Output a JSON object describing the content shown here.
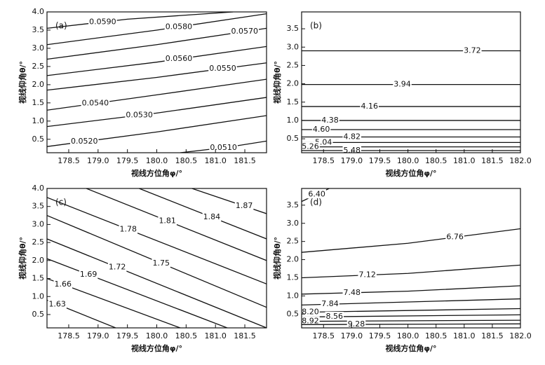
{
  "chart_data": [
    {
      "type": "contour",
      "panel_label": "(a)",
      "xlabel": "视线方位角φ/°",
      "ylabel": "视线仰角θ/°",
      "xlim": [
        178.13,
        181.87
      ],
      "ylim": [
        0.13,
        4.0
      ],
      "xticks": [
        178.5,
        {
          "value": 179,
          "label": "179.0"
        },
        179.5,
        {
          "value": 180,
          "label": "180.0"
        },
        180.5,
        {
          "value": 181,
          "label": "181.0"
        },
        181.5
      ],
      "yticks": [
        0.5,
        {
          "value": 1,
          "label": "1.0"
        },
        1.5,
        {
          "value": 2,
          "label": "2.0"
        },
        2.5,
        {
          "value": 3,
          "label": "3.0"
        },
        3.5,
        {
          "value": 4,
          "label": "4.0"
        }
      ],
      "contours": [
        {
          "level": 0.059,
          "label": "0.0590",
          "x": [
            178.13,
            179.5,
            181.3
          ],
          "y": [
            3.55,
            3.8,
            4.0
          ]
        },
        {
          "level": 0.058,
          "label": "0.0580",
          "x": [
            178.13,
            180.0,
            181.87
          ],
          "y": [
            3.1,
            3.5,
            3.95
          ]
        },
        {
          "level": 0.057,
          "label": "0.0570",
          "x": [
            178.13,
            180.0,
            181.87
          ],
          "y": [
            2.7,
            3.1,
            3.55
          ]
        },
        {
          "level": 0.056,
          "label": "0.0560",
          "x": [
            178.13,
            180.0,
            181.87
          ],
          "y": [
            2.25,
            2.62,
            3.05
          ]
        },
        {
          "level": 0.055,
          "label": "0.0550",
          "x": [
            178.13,
            180.0,
            181.87
          ],
          "y": [
            1.85,
            2.2,
            2.6
          ]
        },
        {
          "level": 0.054,
          "label": "0.0540",
          "x": [
            178.13,
            180.0,
            181.87
          ],
          "y": [
            1.3,
            1.72,
            2.15
          ]
        },
        {
          "level": 0.053,
          "label": "0.0530",
          "x": [
            178.13,
            180.0,
            181.87
          ],
          "y": [
            0.85,
            1.22,
            1.65
          ]
        },
        {
          "level": 0.052,
          "label": "0.0520",
          "x": [
            178.13,
            180.0,
            181.87
          ],
          "y": [
            0.3,
            0.7,
            1.15
          ]
        },
        {
          "level": 0.051,
          "label": "0.0510",
          "x": [
            180.4,
            181.2,
            181.87
          ],
          "y": [
            0.13,
            0.28,
            0.45
          ]
        }
      ]
    },
    {
      "type": "contour",
      "panel_label": "(b)",
      "xlabel": "视线方位角φ/°",
      "ylabel": "视线仰角θ/°",
      "xlim": [
        178.11,
        182.0
      ],
      "ylim": [
        0.12,
        3.96
      ],
      "xticks": [
        178.5,
        {
          "value": 179,
          "label": "179.0"
        },
        179.5,
        {
          "value": 180,
          "label": "180.0"
        },
        180.5,
        {
          "value": 181,
          "label": "181.0"
        },
        181.5,
        {
          "value": 182,
          "label": "182.0"
        }
      ],
      "yticks": [
        0.5,
        {
          "value": 1,
          "label": "1.0"
        },
        1.5,
        {
          "value": 2,
          "label": "2.0"
        },
        2.5,
        {
          "value": 3,
          "label": "3.0"
        },
        3.5
      ],
      "contours": [
        {
          "level": 3.72,
          "x": [
            178.11,
            182.0
          ],
          "y": [
            2.9,
            2.9
          ]
        },
        {
          "level": 3.94,
          "x": [
            178.11,
            182.0
          ],
          "y": [
            1.98,
            1.98
          ]
        },
        {
          "level": 4.16,
          "x": [
            178.11,
            182.0
          ],
          "y": [
            1.38,
            1.38
          ]
        },
        {
          "level": 4.38,
          "x": [
            178.11,
            182.0
          ],
          "y": [
            1.0,
            1.0
          ]
        },
        {
          "level": 4.6,
          "label": "4.60",
          "x": [
            178.11,
            182.0
          ],
          "y": [
            0.75,
            0.75
          ]
        },
        {
          "level": 4.82,
          "x": [
            178.11,
            182.0
          ],
          "y": [
            0.55,
            0.55
          ]
        },
        {
          "level": 5.04,
          "x": [
            178.11,
            182.0
          ],
          "y": [
            0.4,
            0.4
          ]
        },
        {
          "level": 5.26,
          "x": [
            178.11,
            182.0
          ],
          "y": [
            0.28,
            0.28
          ]
        },
        {
          "level": 5.48,
          "x": [
            178.11,
            182.0
          ],
          "y": [
            0.18,
            0.18
          ]
        }
      ]
    },
    {
      "type": "contour",
      "panel_label": "(c)",
      "xlabel": "视线方位角φ/°",
      "ylabel": "视线仰角θ/°",
      "xlim": [
        178.13,
        181.87
      ],
      "ylim": [
        0.13,
        4.0
      ],
      "xticks": [
        178.5,
        {
          "value": 179,
          "label": "179.0"
        },
        179.5,
        {
          "value": 180,
          "label": "180.0"
        },
        180.5,
        {
          "value": 181,
          "label": "181.0"
        },
        181.5
      ],
      "yticks": [
        0.5,
        {
          "value": 1,
          "label": "1.0"
        },
        1.5,
        {
          "value": 2,
          "label": "2.0"
        },
        2.5,
        {
          "value": 3,
          "label": "3.0"
        },
        3.5,
        {
          "value": 4,
          "label": "4.0"
        }
      ],
      "contours": [
        {
          "level": 1.87,
          "x": [
            180.6,
            181.87
          ],
          "y": [
            4.0,
            3.3
          ]
        },
        {
          "level": 1.84,
          "x": [
            179.7,
            181.87
          ],
          "y": [
            4.0,
            2.6
          ]
        },
        {
          "level": 1.81,
          "x": [
            178.8,
            181.87
          ],
          "y": [
            4.0,
            2.0
          ]
        },
        {
          "level": 1.78,
          "x": [
            178.13,
            181.87
          ],
          "y": [
            3.75,
            1.35
          ]
        },
        {
          "level": 1.75,
          "x": [
            178.13,
            181.87
          ],
          "y": [
            3.25,
            0.7
          ]
        },
        {
          "level": 1.72,
          "x": [
            178.13,
            181.87
          ],
          "y": [
            2.6,
            0.13
          ]
        },
        {
          "level": 1.69,
          "x": [
            178.13,
            181.2
          ],
          "y": [
            2.05,
            0.13
          ]
        },
        {
          "level": 1.66,
          "x": [
            178.13,
            180.4
          ],
          "y": [
            1.5,
            0.13
          ]
        },
        {
          "level": 1.63,
          "x": [
            178.13,
            179.3
          ],
          "y": [
            0.9,
            0.13
          ]
        }
      ]
    },
    {
      "type": "contour",
      "panel_label": "(d)",
      "xlabel": "视线方位角φ/°",
      "ylabel": "视线仰角θ/°",
      "xlim": [
        178.11,
        182.0
      ],
      "ylim": [
        0.12,
        3.96
      ],
      "xticks": [
        178.5,
        {
          "value": 179,
          "label": "179.0"
        },
        179.5,
        {
          "value": 180,
          "label": "180.0"
        },
        180.5,
        {
          "value": 181,
          "label": "181.0"
        },
        181.5,
        {
          "value": 182,
          "label": "182.0"
        }
      ],
      "yticks": [
        0.5,
        {
          "value": 1,
          "label": "1.0"
        },
        1.5,
        {
          "value": 2,
          "label": "2.0"
        },
        2.5,
        {
          "value": 3,
          "label": "3.0"
        },
        3.5
      ],
      "contours": [
        {
          "level": 6.4,
          "label": "6.40",
          "x": [
            178.11,
            178.6
          ],
          "y": [
            3.6,
            3.96
          ]
        },
        {
          "level": 6.76,
          "x": [
            178.11,
            180.0,
            182.0
          ],
          "y": [
            2.2,
            2.45,
            2.85
          ]
        },
        {
          "level": 7.12,
          "x": [
            178.11,
            180.0,
            182.0
          ],
          "y": [
            1.5,
            1.62,
            1.85
          ]
        },
        {
          "level": 7.48,
          "x": [
            178.11,
            180.0,
            182.0
          ],
          "y": [
            1.05,
            1.13,
            1.28
          ]
        },
        {
          "level": 7.84,
          "x": [
            178.11,
            182.0
          ],
          "y": [
            0.75,
            0.92
          ]
        },
        {
          "level": 8.2,
          "label": "8.20",
          "x": [
            178.11,
            182.0
          ],
          "y": [
            0.55,
            0.65
          ]
        },
        {
          "level": 8.56,
          "x": [
            178.11,
            182.0
          ],
          "y": [
            0.42,
            0.48
          ]
        },
        {
          "level": 8.92,
          "x": [
            178.11,
            182.0
          ],
          "y": [
            0.3,
            0.33
          ]
        },
        {
          "level": 9.28,
          "x": [
            178.11,
            182.0
          ],
          "y": [
            0.21,
            0.23
          ]
        }
      ]
    }
  ]
}
